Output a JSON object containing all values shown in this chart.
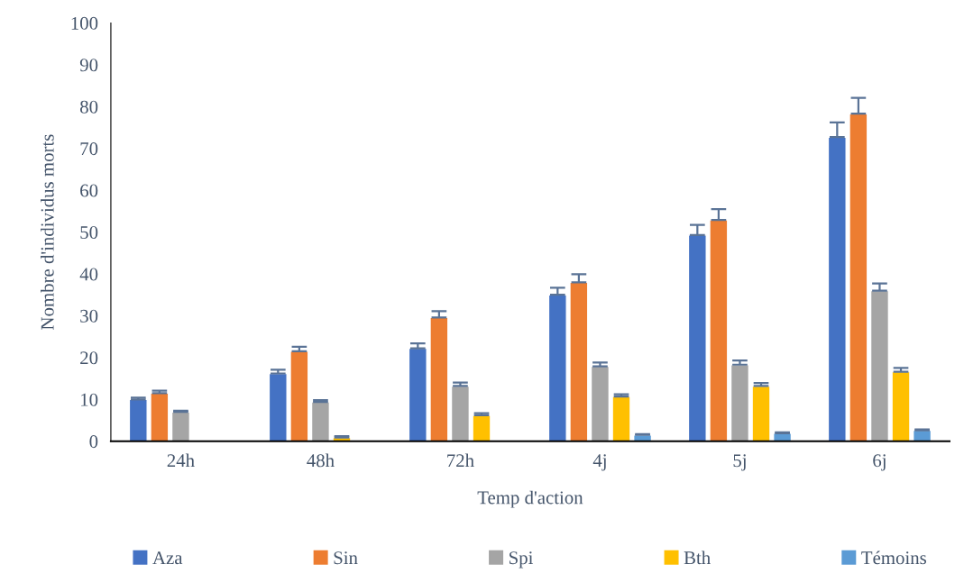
{
  "chart_data": {
    "type": "bar",
    "xlabel": "Temp d'action",
    "ylabel": "Nombre d'individus morts",
    "categories": [
      "24h",
      "48h",
      "72h",
      "4j",
      "5j",
      "6j"
    ],
    "series": [
      {
        "name": "Aza",
        "color": "#4472c4",
        "values": [
          10.0,
          16.2,
          22.2,
          35.0,
          49.3,
          72.7
        ],
        "errors": [
          [
            10.0,
            10.4
          ],
          [
            16.2,
            17.1
          ],
          [
            22.2,
            23.4
          ],
          [
            35.0,
            36.7
          ],
          [
            49.3,
            51.7
          ],
          [
            72.7,
            76.2
          ]
        ]
      },
      {
        "name": "Sin",
        "color": "#ed7d31",
        "values": [
          11.5,
          21.5,
          29.6,
          38.0,
          52.9,
          78.3
        ],
        "errors": [
          [
            11.5,
            12.1
          ],
          [
            21.5,
            22.6
          ],
          [
            29.6,
            31.1
          ],
          [
            38.0,
            39.9
          ],
          [
            52.9,
            55.5
          ],
          [
            78.3,
            82.1
          ]
        ]
      },
      {
        "name": "Spi",
        "color": "#a5a5a5",
        "values": [
          7.0,
          9.4,
          13.2,
          17.9,
          18.3,
          36.0
        ],
        "errors": [
          [
            7.0,
            7.3
          ],
          [
            9.4,
            9.8
          ],
          [
            13.2,
            14.0
          ],
          [
            17.9,
            18.8
          ],
          [
            18.3,
            19.3
          ],
          [
            36.0,
            37.7
          ]
        ]
      },
      {
        "name": "Bth",
        "color": "#ffc000",
        "values": [
          null,
          0.9,
          6.2,
          10.7,
          13.2,
          16.6
        ],
        "errors": [
          null,
          [
            0.9,
            1.2
          ],
          [
            6.2,
            6.7
          ],
          [
            10.7,
            11.2
          ],
          [
            13.2,
            13.9
          ],
          [
            16.6,
            17.5
          ]
        ]
      },
      {
        "name": "Témoins",
        "color": "#5b9bd5",
        "values": [
          null,
          null,
          null,
          1.5,
          1.9,
          2.6
        ],
        "errors": [
          null,
          null,
          null,
          [
            1.5,
            1.7
          ],
          [
            1.9,
            2.1
          ],
          [
            2.6,
            2.8
          ]
        ]
      }
    ],
    "ylim": [
      0,
      100
    ],
    "yticks": [
      0,
      10,
      20,
      30,
      40,
      50,
      60,
      70,
      80,
      90,
      100
    ],
    "grid": false,
    "legend": "bottom"
  }
}
